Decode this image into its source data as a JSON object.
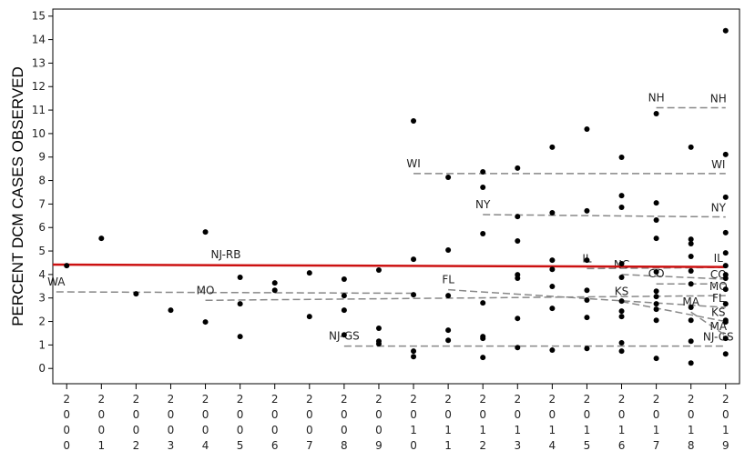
{
  "chart_data": {
    "type": "scatter",
    "y_label": "PERCENT DCM CASES OBSERVED",
    "xlim": [
      1999.6,
      2019.4
    ],
    "ylim": [
      -0.65,
      15.3
    ],
    "xticks": [
      2000,
      2001,
      2002,
      2003,
      2004,
      2005,
      2006,
      2007,
      2008,
      2009,
      2010,
      2011,
      2012,
      2013,
      2014,
      2015,
      2016,
      2017,
      2018,
      2019
    ],
    "yticks": [
      0,
      1,
      2,
      3,
      4,
      5,
      6,
      7,
      8,
      9,
      10,
      11,
      12,
      13,
      14,
      15
    ],
    "grid": false,
    "series": [
      {
        "color": "#000000",
        "x": [
          2000,
          2001,
          2002,
          2003,
          2004,
          2004,
          2005,
          2005,
          2005,
          2006,
          2006,
          2007,
          2007,
          2008,
          2008,
          2008,
          2008,
          2009,
          2009,
          2009,
          2009,
          2010,
          2010,
          2010,
          2010,
          2010,
          2011,
          2011,
          2011,
          2011,
          2011,
          2012,
          2012,
          2012,
          2012,
          2012,
          2012,
          2012,
          2013,
          2013,
          2013,
          2013,
          2013,
          2013,
          2013,
          2014,
          2014,
          2014,
          2014,
          2014,
          2014,
          2014,
          2015,
          2015,
          2015,
          2015,
          2015,
          2015,
          2015,
          2016,
          2016,
          2016,
          2016,
          2016,
          2016,
          2016,
          2016,
          2016,
          2016,
          2017,
          2017,
          2017,
          2017,
          2017,
          2017,
          2017,
          2017,
          2017,
          2017,
          2017,
          2018,
          2018,
          2018,
          2018,
          2018,
          2018,
          2018,
          2018,
          2018,
          2018,
          2019,
          2019,
          2019,
          2019,
          2019,
          2019,
          2019,
          2019,
          2019,
          2019,
          2019,
          2019,
          2019,
          2019
        ],
        "values": [
          4.38,
          5.54,
          3.18,
          2.48,
          5.81,
          1.98,
          3.88,
          2.75,
          1.36,
          3.64,
          3.33,
          4.07,
          2.21,
          3.8,
          3.1,
          2.48,
          1.43,
          4.19,
          1.71,
          1.16,
          1.05,
          10.54,
          4.65,
          3.14,
          0.74,
          0.5,
          8.14,
          5.04,
          3.1,
          1.63,
          1.2,
          8.37,
          7.71,
          5.74,
          2.79,
          1.36,
          1.28,
          0.47,
          8.53,
          6.47,
          5.43,
          3.99,
          3.84,
          2.13,
          0.89,
          9.42,
          6.63,
          4.61,
          4.22,
          3.49,
          2.56,
          0.78,
          10.19,
          6.71,
          4.61,
          3.33,
          2.91,
          2.17,
          0.85,
          8.99,
          7.36,
          6.86,
          4.46,
          3.88,
          2.87,
          2.44,
          2.21,
          1.09,
          0.74,
          10.85,
          7.05,
          6.32,
          5.54,
          4.11,
          3.29,
          3.06,
          2.75,
          2.52,
          2.05,
          0.43,
          9.42,
          5.5,
          5.31,
          4.77,
          4.15,
          3.6,
          2.6,
          2.05,
          1.16,
          0.23,
          14.38,
          9.11,
          7.29,
          5.78,
          4.92,
          4.38,
          3.99,
          3.84,
          3.37,
          2.75,
          2.05,
          1.98,
          1.28,
          0.62
        ]
      }
    ],
    "lines": [
      {
        "start_label": "WA",
        "x": [
          1999.7,
          2010
        ],
        "y": [
          3.26,
          3.2
        ],
        "color": "#888888",
        "dashed": true
      },
      {
        "start_label": "MO",
        "end_label": "MO",
        "x": [
          2004,
          2019
        ],
        "y": [
          2.9,
          3.1
        ],
        "color": "#888888",
        "dashed": true
      },
      {
        "start_label": "NJ-GS",
        "end_label": "NJ-GS",
        "x": [
          2008,
          2019
        ],
        "y": [
          0.95,
          0.95
        ],
        "color": "#888888",
        "dashed": true
      },
      {
        "start_label": "WI",
        "end_label": "WI",
        "x": [
          2010,
          2019
        ],
        "y": [
          8.3,
          8.3
        ],
        "color": "#888888",
        "dashed": true
      },
      {
        "start_label": "NY",
        "end_label": "NY",
        "x": [
          2012,
          2019
        ],
        "y": [
          6.55,
          6.45
        ],
        "color": "#888888",
        "dashed": true
      },
      {
        "start_label": "FL",
        "end_label": "FL",
        "x": [
          2011,
          2019
        ],
        "y": [
          3.35,
          2.6
        ],
        "color": "#888888",
        "dashed": true
      },
      {
        "start_label": "IL",
        "end_label": "IL",
        "x": [
          2015,
          2019
        ],
        "y": [
          4.25,
          4.3
        ],
        "color": "#888888",
        "dashed": true
      },
      {
        "start_label": "NC",
        "x": [
          2016,
          2019
        ],
        "y": [
          4.0,
          3.8
        ],
        "color": "#888888",
        "dashed": true
      },
      {
        "start_label": "CO",
        "end_label": "CO",
        "x": [
          2017,
          2019
        ],
        "y": [
          3.6,
          3.6
        ],
        "color": "#888888",
        "dashed": true
      },
      {
        "start_label": "KS",
        "end_label": "KS",
        "x": [
          2016,
          2019
        ],
        "y": [
          2.85,
          2.0
        ],
        "color": "#888888",
        "dashed": true
      },
      {
        "start_label": "MA",
        "end_label": "MA",
        "x": [
          2018,
          2019
        ],
        "y": [
          2.4,
          1.4
        ],
        "color": "#888888",
        "dashed": true
      },
      {
        "start_label": "NH",
        "end_label": "NH",
        "x": [
          2017,
          2019
        ],
        "y": [
          11.1,
          11.1
        ],
        "color": "#888888",
        "dashed": true
      },
      {
        "start_label": "NJ-RB",
        "x": [
          1999.6,
          2019
        ],
        "y": [
          4.42,
          4.32
        ],
        "color": "#cc1111",
        "dashed": false
      }
    ]
  }
}
